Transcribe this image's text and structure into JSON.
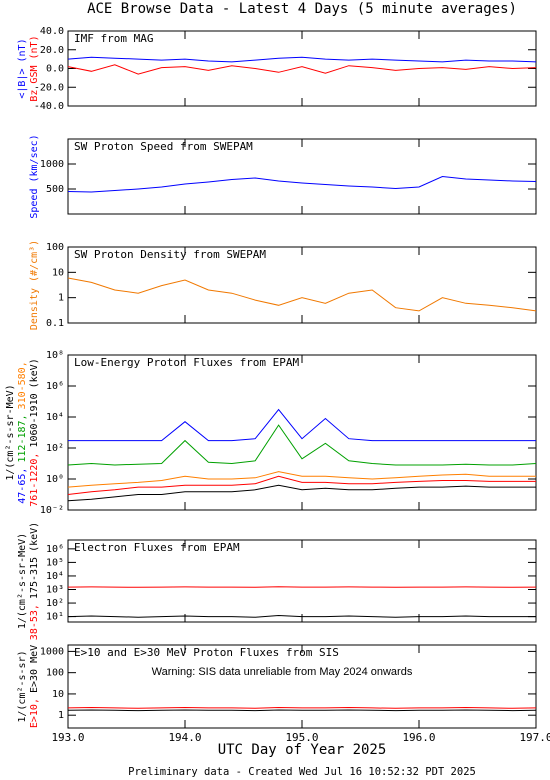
{
  "title": "ACE Browse Data - Latest 4 Days (5 minute averages)",
  "xlabel": "UTC Day of Year 2025",
  "footer": "Preliminary data - Created Wed Jul 16 10:52:32 PDT 2025",
  "chart_data": [
    {
      "type": "line",
      "title": "IMF from MAG",
      "x": [
        193.0,
        193.2,
        193.4,
        193.6,
        193.8,
        194.0,
        194.2,
        194.4,
        194.6,
        194.8,
        195.0,
        195.2,
        195.4,
        195.6,
        195.8,
        196.0,
        196.2,
        196.4,
        196.6,
        196.8,
        197.0
      ],
      "xlim": [
        193,
        197
      ],
      "ylim": [
        -40,
        40
      ],
      "yticks": [
        {
          "value": -40,
          "label": "-40.0"
        },
        {
          "value": -20,
          "label": "-20.0"
        },
        {
          "value": 0,
          "label": "0.0"
        },
        {
          "value": 20,
          "label": "20.0"
        },
        {
          "value": 40,
          "label": "40.0"
        }
      ],
      "series": [
        {
          "name": "<|B|> (nT)",
          "color": "#0000ff",
          "values": [
            10,
            12,
            11,
            10,
            9,
            10,
            8,
            7,
            9,
            11,
            12,
            10,
            9,
            10,
            9,
            8,
            7,
            9,
            8,
            8,
            7
          ]
        },
        {
          "name": "Bz GSM (nT)",
          "color": "#ff0000",
          "values": [
            2,
            -3,
            4,
            -6,
            1,
            2,
            -2,
            3,
            0,
            -4,
            2,
            -5,
            3,
            1,
            -2,
            0,
            1,
            -1,
            2,
            0,
            1
          ]
        }
      ]
    },
    {
      "type": "line",
      "title": "SW Proton Speed from SWEPAM",
      "x": [
        193.0,
        193.2,
        193.4,
        193.6,
        193.8,
        194.0,
        194.2,
        194.4,
        194.6,
        194.8,
        195.0,
        195.2,
        195.4,
        195.6,
        195.8,
        196.0,
        196.2,
        196.4,
        196.6,
        196.8,
        197.0
      ],
      "xlim": [
        193,
        197
      ],
      "ylim": [
        0,
        1500
      ],
      "yticks": [
        500,
        1000
      ],
      "series": [
        {
          "name": "Speed (km/sec)",
          "color": "#0000ff",
          "values": [
            450,
            440,
            470,
            500,
            540,
            600,
            640,
            690,
            720,
            660,
            620,
            590,
            560,
            540,
            510,
            540,
            750,
            700,
            680,
            660,
            650
          ]
        }
      ]
    },
    {
      "type": "line",
      "title": "SW Proton Density from SWEPAM",
      "log": true,
      "x": [
        193.0,
        193.2,
        193.4,
        193.6,
        193.8,
        194.0,
        194.2,
        194.4,
        194.6,
        194.8,
        195.0,
        195.2,
        195.4,
        195.6,
        195.8,
        196.0,
        196.2,
        196.4,
        196.6,
        196.8,
        197.0
      ],
      "xlim": [
        193,
        197
      ],
      "ylim": [
        0.1,
        100
      ],
      "yticks": [
        0.1,
        1,
        10,
        100
      ],
      "series": [
        {
          "name": "Density (#/cm³)",
          "color": "#f07800",
          "values": [
            6,
            4,
            2,
            1.5,
            3,
            5,
            2,
            1.5,
            0.8,
            0.5,
            1,
            0.6,
            1.5,
            2,
            0.4,
            0.3,
            1,
            0.6,
            0.5,
            0.4,
            0.3
          ]
        }
      ]
    },
    {
      "type": "line",
      "title": "Low-Energy Proton Fluxes from EPAM",
      "log": true,
      "ylabel": "1/(cm²-s-sr-MeV)",
      "ylabel_unit": "(keV)",
      "x": [
        193.0,
        193.2,
        193.4,
        193.6,
        193.8,
        194.0,
        194.2,
        194.4,
        194.6,
        194.8,
        195.0,
        195.2,
        195.4,
        195.6,
        195.8,
        196.0,
        196.2,
        196.4,
        196.6,
        196.8,
        197.0
      ],
      "xlim": [
        193,
        197
      ],
      "ylim": [
        0.01,
        100000000
      ],
      "yticks": [
        {
          "value": 0.01,
          "label": "10⁻²"
        },
        {
          "value": 1,
          "label": "10⁰"
        },
        {
          "value": 100,
          "label": "10²"
        },
        {
          "value": 10000,
          "label": "10⁴"
        },
        {
          "value": 1000000,
          "label": "10⁶"
        },
        {
          "value": 100000000,
          "label": "10⁸"
        }
      ],
      "series": [
        {
          "name": "47-65,",
          "color": "#0000ff",
          "values": [
            300,
            300,
            300,
            300,
            300,
            5000,
            300,
            300,
            400,
            30000,
            400,
            8000,
            400,
            300,
            300,
            300,
            300,
            300,
            300,
            300,
            300
          ]
        },
        {
          "name": "112-187,",
          "color": "#00a000",
          "values": [
            8,
            10,
            8,
            9,
            10,
            300,
            12,
            10,
            15,
            3000,
            20,
            200,
            15,
            10,
            8,
            8,
            8,
            9,
            8,
            8,
            10
          ]
        },
        {
          "name": "310-580,",
          "color": "#ff7f00",
          "values": [
            0.3,
            0.4,
            0.5,
            0.6,
            0.8,
            1.5,
            1,
            1,
            1.2,
            3,
            1.5,
            1.5,
            1.2,
            1,
            1.2,
            1.5,
            1.8,
            2,
            1.5,
            1.5,
            1.5
          ]
        },
        {
          "name": "761-1220,",
          "color": "#ff0000",
          "values": [
            0.1,
            0.15,
            0.2,
            0.3,
            0.3,
            0.4,
            0.4,
            0.4,
            0.5,
            1.5,
            0.6,
            0.6,
            0.5,
            0.5,
            0.6,
            0.7,
            0.8,
            0.8,
            0.7,
            0.7,
            0.7
          ]
        },
        {
          "name": "1060-1910",
          "color": "#000000",
          "values": [
            0.04,
            0.05,
            0.07,
            0.1,
            0.1,
            0.15,
            0.15,
            0.15,
            0.2,
            0.4,
            0.2,
            0.25,
            0.2,
            0.2,
            0.25,
            0.3,
            0.3,
            0.35,
            0.3,
            0.3,
            0.3
          ]
        }
      ]
    },
    {
      "type": "line",
      "title": "Electron Fluxes from EPAM",
      "log": true,
      "ylabel": "1/(cm²-s-sr-MeV)",
      "ylabel_unit": "(keV)",
      "x": [
        193.0,
        193.2,
        193.4,
        193.6,
        193.8,
        194.0,
        194.2,
        194.4,
        194.6,
        194.8,
        195.0,
        195.2,
        195.4,
        195.6,
        195.8,
        196.0,
        196.2,
        196.4,
        196.6,
        196.8,
        197.0
      ],
      "xlim": [
        193,
        197
      ],
      "ylim": [
        4,
        4500000
      ],
      "yticks": [
        {
          "value": 10,
          "label": "10¹"
        },
        {
          "value": 100,
          "label": "10²"
        },
        {
          "value": 1000,
          "label": "10³"
        },
        {
          "value": 10000,
          "label": "10⁴"
        },
        {
          "value": 100000,
          "label": "10⁵"
        },
        {
          "value": 1000000,
          "label": "10⁶"
        }
      ],
      "series": [
        {
          "name": "38-53,",
          "color": "#ff0000",
          "values": [
            1500,
            1550,
            1500,
            1450,
            1500,
            1550,
            1500,
            1500,
            1450,
            1600,
            1500,
            1500,
            1550,
            1500,
            1450,
            1500,
            1500,
            1550,
            1500,
            1450,
            1500
          ]
        },
        {
          "name": "175-315",
          "color": "#000000",
          "values": [
            10,
            11,
            10,
            9,
            10,
            11,
            10,
            10,
            9,
            12,
            10,
            10,
            11,
            10,
            9,
            10,
            10,
            11,
            10,
            10,
            10
          ]
        }
      ]
    },
    {
      "type": "line",
      "title": "E>10 and E>30 MeV Proton Fluxes from SIS",
      "log": true,
      "ylabel": "1/(cm²-s-sr)",
      "annotation": "Warning: SIS data unreliable from May 2024 onwards",
      "x": [
        193.0,
        193.2,
        193.4,
        193.6,
        193.8,
        194.0,
        194.2,
        194.4,
        194.6,
        194.8,
        195.0,
        195.2,
        195.4,
        195.6,
        195.8,
        196.0,
        196.2,
        196.4,
        196.6,
        196.8,
        197.0
      ],
      "xlim": [
        193,
        197
      ],
      "ylim": [
        0.25,
        2000
      ],
      "yticks": [
        1,
        10,
        100,
        1000
      ],
      "xticks": [
        {
          "value": 193,
          "label": "193.0"
        },
        {
          "value": 194,
          "label": "194.0"
        },
        {
          "value": 195,
          "label": "195.0"
        },
        {
          "value": 196,
          "label": "196.0"
        },
        {
          "value": 197,
          "label": "197.0"
        }
      ],
      "series": [
        {
          "name": "E>10,",
          "color": "#ff0000",
          "values": [
            2.2,
            2.3,
            2.2,
            2.1,
            2.2,
            2.3,
            2.2,
            2.2,
            2.1,
            2.3,
            2.2,
            2.2,
            2.3,
            2.2,
            2.1,
            2.2,
            2.2,
            2.3,
            2.2,
            2.1,
            2.2
          ]
        },
        {
          "name": "E>30 MeV",
          "color": "#000000",
          "values": [
            1.7,
            1.75,
            1.7,
            1.65,
            1.7,
            1.75,
            1.7,
            1.7,
            1.65,
            1.75,
            1.7,
            1.7,
            1.75,
            1.7,
            1.65,
            1.7,
            1.7,
            1.75,
            1.7,
            1.65,
            1.7
          ]
        }
      ]
    }
  ]
}
